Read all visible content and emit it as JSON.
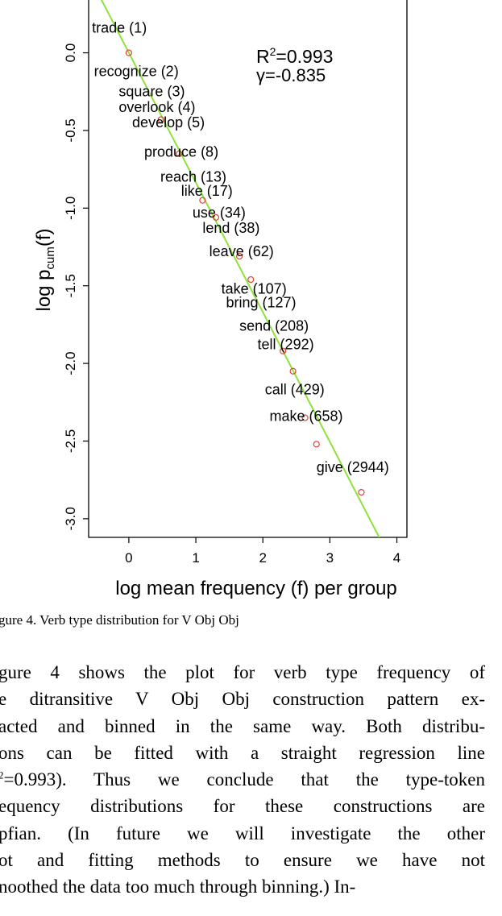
{
  "chart_data": {
    "type": "scatter",
    "xlabel": "log mean frequency (f) per group",
    "ylabel_main": "log p",
    "ylabel_sub": "cum",
    "ylabel_tail": "(f)",
    "xlim": [
      -0.6,
      4.15
    ],
    "ylim": [
      -3.12,
      0.34
    ],
    "x_ticks": [
      0,
      1,
      2,
      3,
      4
    ],
    "x_tick_labels": [
      "0",
      "1",
      "2",
      "3",
      "4"
    ],
    "y_ticks": [
      0.0,
      -0.5,
      -1.0,
      -1.5,
      -2.0,
      -2.5,
      -3.0
    ],
    "y_tick_labels": [
      "0.0",
      "-0.5",
      "-1.0",
      "-1.5",
      "-2.0",
      "-2.5",
      "-3.0"
    ],
    "annotation_r2": "R²=0.993",
    "annotation_gamma": "γ=-0.835",
    "annotation_color": "#2e3fe0",
    "point_color": "#e0403a",
    "fit_line_color": "#8ee23a",
    "fit_line": {
      "slope": -0.835,
      "intercept": 0.0
    },
    "points": [
      {
        "x": 0.0,
        "y": 0.0
      },
      {
        "x": 0.48,
        "y": -0.43
      },
      {
        "x": 0.75,
        "y": -0.65
      },
      {
        "x": 1.1,
        "y": -0.95
      },
      {
        "x": 1.3,
        "y": -1.06
      },
      {
        "x": 1.65,
        "y": -1.31
      },
      {
        "x": 1.82,
        "y": -1.46
      },
      {
        "x": 2.3,
        "y": -1.92
      },
      {
        "x": 2.45,
        "y": -2.05
      },
      {
        "x": 2.63,
        "y": -2.35
      },
      {
        "x": 2.8,
        "y": -2.52
      },
      {
        "x": 3.47,
        "y": -2.83
      }
    ],
    "labels": [
      {
        "text": "trade (1)",
        "x": -0.55,
        "y": 0.13
      },
      {
        "text": "recognize (2)",
        "x": -0.52,
        "y": -0.15
      },
      {
        "text": "square (3)",
        "x": -0.15,
        "y": -0.28
      },
      {
        "text": "overlook (4)",
        "x": -0.15,
        "y": -0.38
      },
      {
        "text": "develop (5)",
        "x": 0.05,
        "y": -0.48
      },
      {
        "text": "produce (8)",
        "x": 0.23,
        "y": -0.67
      },
      {
        "text": "reach (13)",
        "x": 0.47,
        "y": -0.83
      },
      {
        "text": "like (17)",
        "x": 0.78,
        "y": -0.92
      },
      {
        "text": "use (34)",
        "x": 0.95,
        "y": -1.06
      },
      {
        "text": "lend (38)",
        "x": 1.1,
        "y": -1.16
      },
      {
        "text": "leave (62)",
        "x": 1.2,
        "y": -1.31
      },
      {
        "text": "take (107)",
        "x": 1.38,
        "y": -1.55
      },
      {
        "text": "bring (127)",
        "x": 1.45,
        "y": -1.64
      },
      {
        "text": "send (208)",
        "x": 1.65,
        "y": -1.79
      },
      {
        "text": "tell (292)",
        "x": 1.92,
        "y": -1.91
      },
      {
        "text": "call (429)",
        "x": 2.03,
        "y": -2.2
      },
      {
        "text": "make (658)",
        "x": 2.1,
        "y": -2.37
      },
      {
        "text": "give (2944)",
        "x": 2.8,
        "y": -2.7
      }
    ]
  },
  "caption": "gure 4. Verb type distribution for V Obj Obj",
  "paragraph": {
    "line1": "gure 4 shows the plot for verb type frequency of",
    "line2": "e ditransitive V Obj Obj construction pattern ex-",
    "line3": "acted and binned in the same way. Both distribu-",
    "line4": "ons can be fitted with a straight regression line",
    "line5_pre": "",
    "line5_sup": "2",
    "line5_post": "=0.993). Thus we conclude that the type-token",
    "line6": "equency distributions for these constructions are",
    "line7": "pfian. (In future we will investigate the other",
    "line8": "ot and fitting methods to ensure we have not",
    "line9": "noothed the data too much through binning.) In-"
  }
}
